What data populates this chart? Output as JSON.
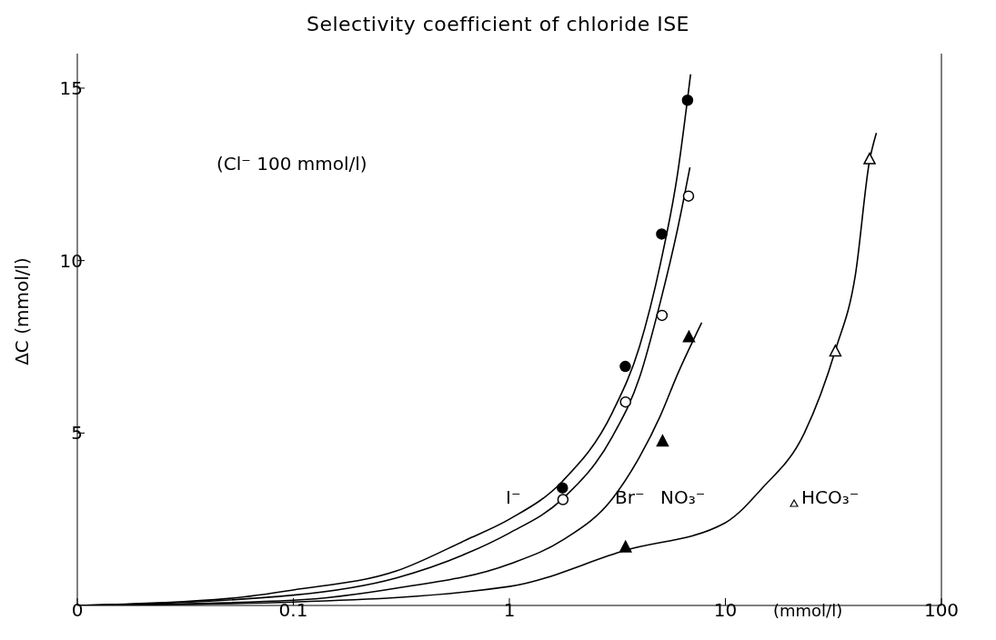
{
  "chart_data": {
    "type": "scatter",
    "title": "Selectivity coefficient of chloride ISE",
    "xlabel": "(mmol/l)",
    "ylabel": "ΔC (mmol/l)",
    "log": "x",
    "xlim": [
      0.01,
      100
    ],
    "ylim": [
      0,
      16
    ],
    "xticks": [
      {
        "value": 0.01,
        "label": "0"
      },
      0.1,
      1,
      10,
      100
    ],
    "yticks": [
      5,
      10,
      15
    ],
    "grid": false,
    "legend": false,
    "annotations": [
      "(Cl⁻ 100 mmol/l)",
      "I⁻",
      "Br⁻",
      "NO₃⁻",
      "HCO₃⁻"
    ],
    "series": [
      {
        "marker": "circle",
        "color": "#000000",
        "x": [
          1.76,
          3.44,
          5.07,
          6.68
        ],
        "values": [
          3.41,
          6.93,
          10.77,
          14.65
        ]
      },
      {
        "marker": "circle",
        "color": "#000000",
        "x": [
          1.77,
          3.45,
          5.09,
          6.75
        ],
        "values": [
          3.07,
          5.9,
          8.41,
          11.87
        ]
      },
      {
        "marker": "triangle",
        "color": "#000000",
        "x": [
          3.45,
          5.12,
          6.78
        ],
        "values": [
          1.69,
          4.76,
          7.78
        ]
      },
      {
        "marker": "triangle",
        "color": "#000000",
        "x": [
          32.3,
          46.5
        ],
        "values": [
          7.37,
          12.94
        ]
      },
      {
        "type": "line",
        "marker": "none",
        "color": "#000000",
        "x": [
          0.01,
          0.05,
          0.1,
          0.3,
          0.63,
          1,
          1.76,
          3,
          4,
          5,
          6,
          6.9
        ],
        "values": [
          0,
          0.2,
          0.45,
          1,
          1.9,
          2.5,
          3.6,
          5.6,
          7.5,
          9.9,
          12.5,
          15.4
        ]
      },
      {
        "type": "line",
        "marker": "none",
        "color": "#000000",
        "x": [
          0.01,
          0.1,
          0.3,
          0.63,
          1,
          1.77,
          3,
          4,
          5,
          6,
          6.85
        ],
        "values": [
          0,
          0.3,
          0.8,
          1.5,
          2.1,
          3.1,
          4.9,
          6.6,
          8.8,
          10.9,
          12.7
        ]
      },
      {
        "type": "line",
        "marker": "none",
        "color": "#000000",
        "x": [
          0.01,
          0.1,
          0.3,
          1,
          1.77,
          3,
          4,
          5,
          6,
          7.77
        ],
        "values": [
          0,
          0.15,
          0.5,
          1.2,
          1.9,
          3.1,
          4.3,
          5.5,
          6.7,
          8.2
        ]
      },
      {
        "type": "line",
        "marker": "none",
        "color": "#000000",
        "x": [
          0.01,
          0.1,
          1,
          3.45,
          10,
          14.8,
          23.2,
          32.3,
          40,
          46.5,
          50
        ],
        "values": [
          0,
          0.1,
          0.55,
          1.6,
          2.4,
          3.4,
          5,
          7.4,
          9.6,
          12.9,
          13.7
        ]
      }
    ]
  }
}
